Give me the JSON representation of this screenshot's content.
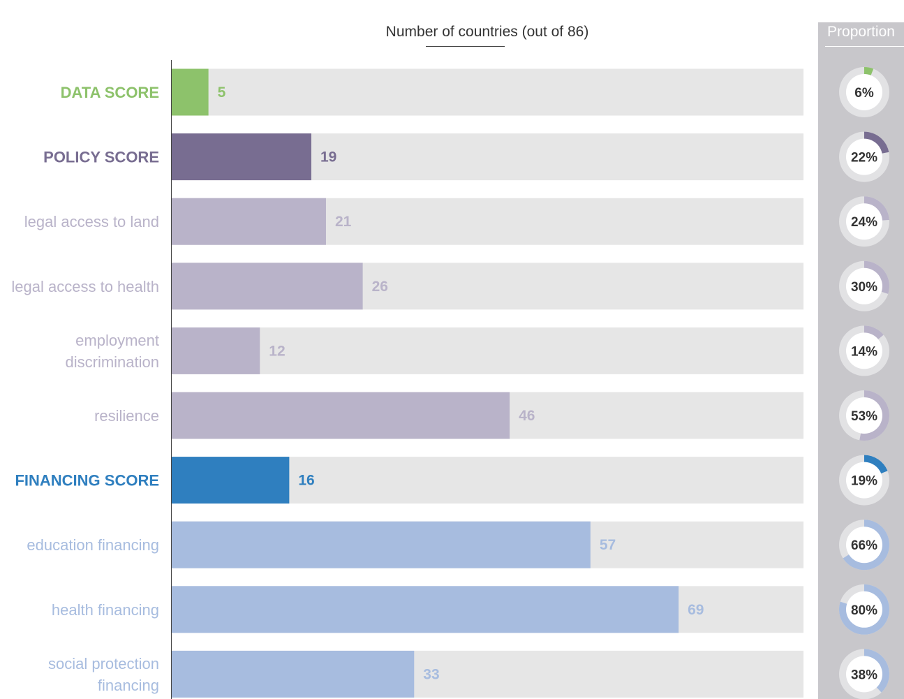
{
  "chart_data": {
    "type": "bar",
    "title": "Number of countries (out of 86)",
    "max": 86,
    "categories": [
      "DATA SCORE",
      "POLICY SCORE",
      "legal access to land",
      "legal access to health",
      "employment discrimination",
      "resilience",
      "FINANCING SCORE",
      "education financing",
      "health financing",
      "social protection financing"
    ],
    "values": [
      5,
      19,
      21,
      26,
      12,
      46,
      16,
      57,
      69,
      33
    ],
    "label_lines": [
      [
        "DATA SCORE"
      ],
      [
        "POLICY SCORE"
      ],
      [
        "legal access to land"
      ],
      [
        "legal access to health"
      ],
      [
        "employment",
        "discrimination"
      ],
      [
        "resilience"
      ],
      [
        "FINANCING SCORE"
      ],
      [
        "education financing"
      ],
      [
        "health financing"
      ],
      [
        "social protection",
        "financing"
      ]
    ],
    "bold": [
      true,
      true,
      false,
      false,
      false,
      false,
      true,
      false,
      false,
      false
    ],
    "bar_colors": [
      "#8dc26b",
      "#786d91",
      "#b9b3c9",
      "#b9b3c9",
      "#b9b3c9",
      "#b9b3c9",
      "#2f7fbf",
      "#a7bcdf",
      "#a7bcdf",
      "#a7bcdf"
    ],
    "text_colors": [
      "#8dc26b",
      "#786d91",
      "#b9b3c9",
      "#b9b3c9",
      "#b9b3c9",
      "#b9b3c9",
      "#2f7fbf",
      "#a7bcdf",
      "#a7bcdf",
      "#a7bcdf"
    ],
    "track_color": "#e6e6e6",
    "proportion": {
      "title": "Proportion",
      "values": [
        6,
        22,
        24,
        30,
        14,
        53,
        19,
        66,
        80,
        38
      ],
      "labels": [
        "6%",
        "22%",
        "24%",
        "30%",
        "14%",
        "53%",
        "19%",
        "66%",
        "80%",
        "38%"
      ],
      "ring_track_color": "#e2e2e4",
      "inner_color": "#ffffff"
    }
  }
}
